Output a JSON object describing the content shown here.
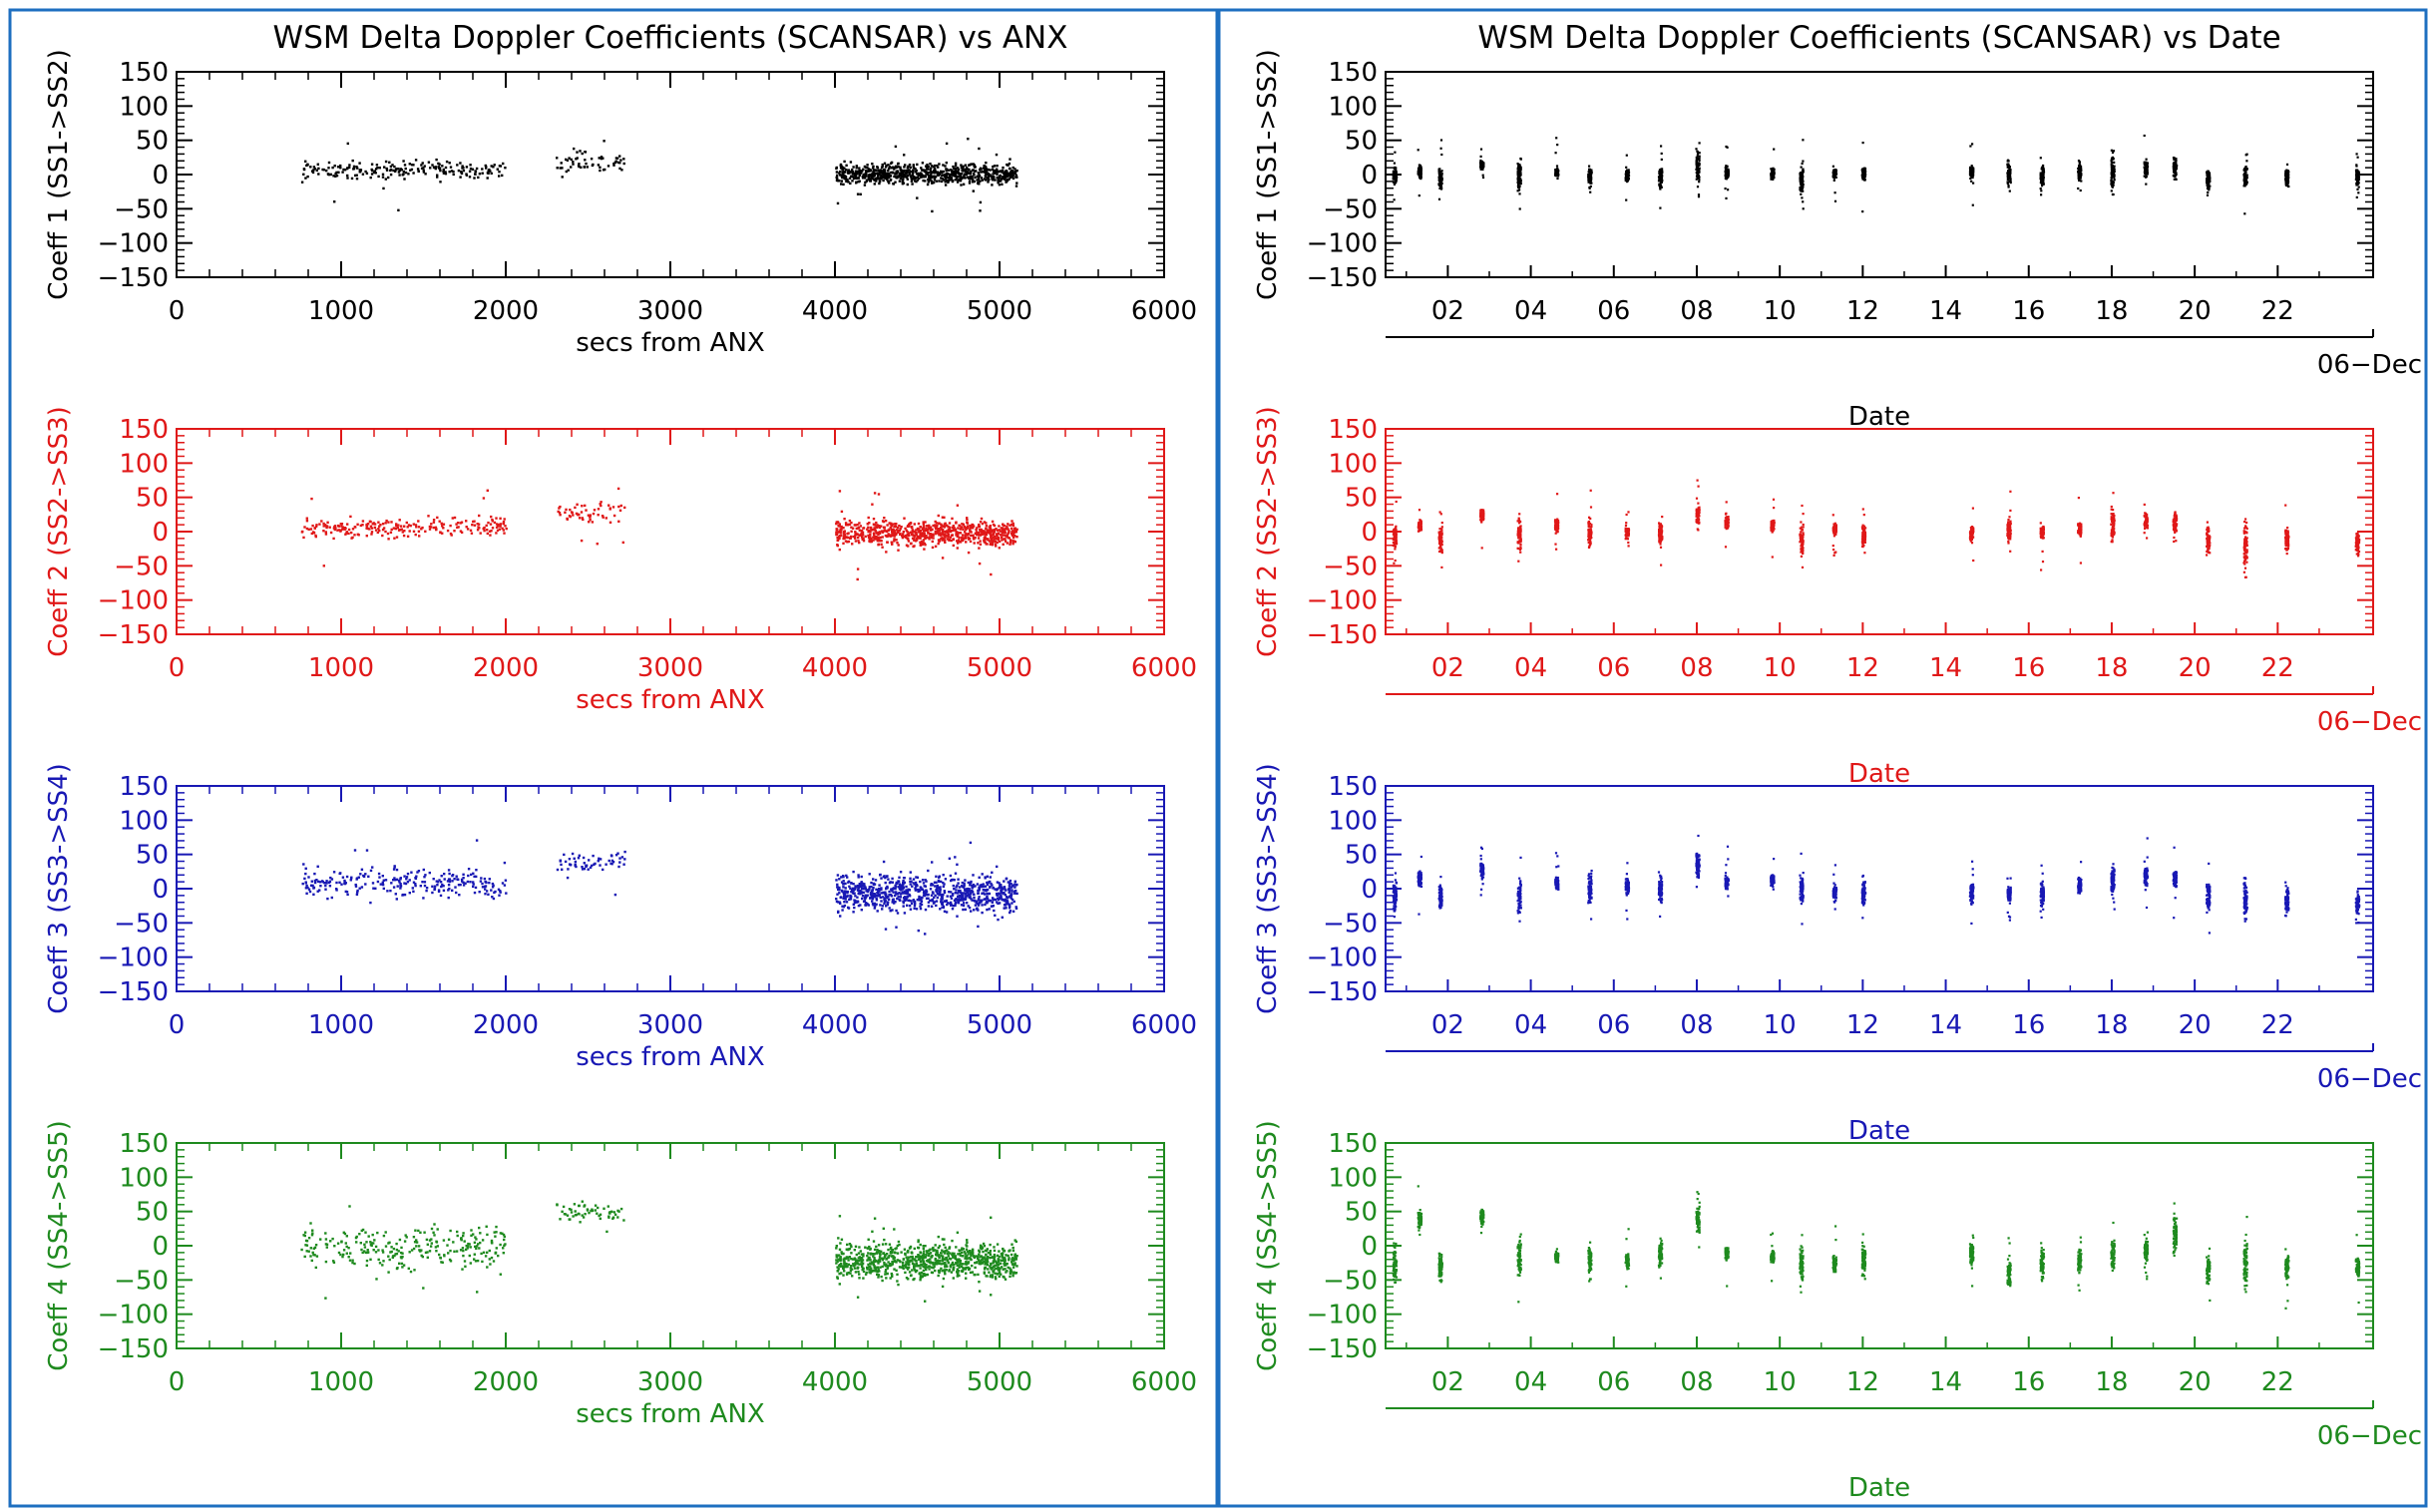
{
  "colors": {
    "frame": "#1e6fc0",
    "series": [
      "#000000",
      "#e01818",
      "#1818b4",
      "#1e8a1e"
    ]
  },
  "left_title": "WSM Delta Doppler Coefficients (SCANSAR) vs ANX",
  "right_title": "WSM Delta Doppler Coefficients (SCANSAR) vs Date",
  "chart_data": [
    {
      "type": "scatter",
      "panel": "left",
      "row": 0,
      "color": "#000000",
      "ylabel": "Coeff 1 (SS1->SS2)",
      "xlabel": "secs from ANX",
      "xlim": [
        0,
        6000
      ],
      "ylim": [
        -150,
        150
      ],
      "xticks": [
        "0",
        "1000",
        "2000",
        "3000",
        "4000",
        "5000",
        "6000"
      ],
      "yticks": [
        "150",
        "100",
        "50",
        "0",
        "−50",
        "−100",
        "−150"
      ],
      "clusters": [
        {
          "x": [
            750,
            2000
          ],
          "y": 8,
          "spread": 8,
          "n": 220
        },
        {
          "x": [
            2300,
            2720
          ],
          "y": 20,
          "spread": 12,
          "n": 60
        },
        {
          "x": [
            4000,
            5100
          ],
          "y": 2,
          "spread": 10,
          "n": 800
        }
      ]
    },
    {
      "type": "scatter",
      "panel": "left",
      "row": 1,
      "color": "#e01818",
      "ylabel": "Coeff 2 (SS2->SS3)",
      "xlabel": "secs from ANX",
      "xlim": [
        0,
        6000
      ],
      "ylim": [
        -150,
        150
      ],
      "xticks": [
        "0",
        "1000",
        "2000",
        "3000",
        "4000",
        "5000",
        "6000"
      ],
      "yticks": [
        "150",
        "100",
        "50",
        "0",
        "−50",
        "−100",
        "−150"
      ],
      "clusters": [
        {
          "x": [
            750,
            2000
          ],
          "y": 8,
          "spread": 10,
          "n": 240
        },
        {
          "x": [
            2300,
            2720
          ],
          "y": 30,
          "spread": 10,
          "n": 60
        },
        {
          "x": [
            4000,
            5100
          ],
          "y": 0,
          "spread": 13,
          "n": 800
        }
      ]
    },
    {
      "type": "scatter",
      "panel": "left",
      "row": 2,
      "color": "#1818b4",
      "ylabel": "Coeff 3 (SS3->SS4)",
      "xlabel": "secs from ANX",
      "xlim": [
        0,
        6000
      ],
      "ylim": [
        -150,
        150
      ],
      "xticks": [
        "0",
        "1000",
        "2000",
        "3000",
        "4000",
        "5000",
        "6000"
      ],
      "yticks": [
        "150",
        "100",
        "50",
        "0",
        "−50",
        "−100",
        "−150"
      ],
      "clusters": [
        {
          "x": [
            750,
            2000
          ],
          "y": 10,
          "spread": 15,
          "n": 260
        },
        {
          "x": [
            2300,
            2720
          ],
          "y": 40,
          "spread": 10,
          "n": 60
        },
        {
          "x": [
            4000,
            5100
          ],
          "y": -5,
          "spread": 18,
          "n": 850
        }
      ]
    },
    {
      "type": "scatter",
      "panel": "left",
      "row": 3,
      "color": "#1e8a1e",
      "ylabel": "Coeff 4 (SS4->SS5)",
      "xlabel": "secs from ANX",
      "xlim": [
        0,
        6000
      ],
      "ylim": [
        -150,
        150
      ],
      "xticks": [
        "0",
        "1000",
        "2000",
        "3000",
        "4000",
        "5000",
        "6000"
      ],
      "yticks": [
        "150",
        "100",
        "50",
        "0",
        "−50",
        "−100",
        "−150"
      ],
      "clusters": [
        {
          "x": [
            750,
            2000
          ],
          "y": 0,
          "spread": 22,
          "n": 280
        },
        {
          "x": [
            2300,
            2720
          ],
          "y": 50,
          "spread": 10,
          "n": 60
        },
        {
          "x": [
            4000,
            5100
          ],
          "y": -20,
          "spread": 18,
          "n": 900
        }
      ]
    },
    {
      "type": "scatter",
      "panel": "right",
      "row": 0,
      "color": "#000000",
      "ylabel": "Coeff 1 (SS1->SS2)",
      "xlabel": "Date",
      "date_label": "06−Dec",
      "xlim": [
        0.5,
        24.3
      ],
      "ylim": [
        -150,
        150
      ],
      "xtick_values": [
        2,
        4,
        6,
        8,
        10,
        12,
        14,
        16,
        18,
        20,
        22
      ],
      "xticks": [
        "02",
        "04",
        "06",
        "08",
        "10",
        "12",
        "14",
        "16",
        "18",
        "20",
        "22"
      ],
      "yticks": [
        "150",
        "100",
        "50",
        "0",
        "−50",
        "−100",
        "−150"
      ],
      "passes": [
        {
          "x": 0.7,
          "y": 0,
          "s": 8
        },
        {
          "x": 1.3,
          "y": 5,
          "s": 6
        },
        {
          "x": 1.8,
          "y": -5,
          "s": 10
        },
        {
          "x": 2.8,
          "y": 15,
          "s": 4
        },
        {
          "x": 3.7,
          "y": 0,
          "s": 15
        },
        {
          "x": 4.6,
          "y": 5,
          "s": 6
        },
        {
          "x": 5.4,
          "y": -2,
          "s": 10
        },
        {
          "x": 6.3,
          "y": 0,
          "s": 6
        },
        {
          "x": 7.1,
          "y": -3,
          "s": 10
        },
        {
          "x": 8.0,
          "y": 15,
          "s": 18
        },
        {
          "x": 8.7,
          "y": 5,
          "s": 6
        },
        {
          "x": 9.8,
          "y": 2,
          "s": 6
        },
        {
          "x": 10.5,
          "y": -5,
          "s": 15
        },
        {
          "x": 11.3,
          "y": 3,
          "s": 6
        },
        {
          "x": 12.0,
          "y": 2,
          "s": 8
        },
        {
          "x": 14.6,
          "y": 5,
          "s": 6
        },
        {
          "x": 15.5,
          "y": 2,
          "s": 12
        },
        {
          "x": 16.3,
          "y": 0,
          "s": 10
        },
        {
          "x": 17.2,
          "y": 5,
          "s": 10
        },
        {
          "x": 18.0,
          "y": 5,
          "s": 18
        },
        {
          "x": 18.8,
          "y": 10,
          "s": 8
        },
        {
          "x": 19.5,
          "y": 10,
          "s": 12
        },
        {
          "x": 20.3,
          "y": -5,
          "s": 10
        },
        {
          "x": 21.2,
          "y": -3,
          "s": 10
        },
        {
          "x": 22.2,
          "y": -3,
          "s": 10
        },
        {
          "x": 23.9,
          "y": -2,
          "s": 10
        }
      ]
    },
    {
      "type": "scatter",
      "panel": "right",
      "row": 1,
      "color": "#e01818",
      "ylabel": "Coeff 2 (SS2->SS3)",
      "xlabel": "Date",
      "date_label": "06−Dec",
      "xlim": [
        0.5,
        24.3
      ],
      "ylim": [
        -150,
        150
      ],
      "xtick_values": [
        2,
        4,
        6,
        8,
        10,
        12,
        14,
        16,
        18,
        20,
        22
      ],
      "xticks": [
        "02",
        "04",
        "06",
        "08",
        "10",
        "12",
        "14",
        "16",
        "18",
        "20",
        "22"
      ],
      "yticks": [
        "150",
        "100",
        "50",
        "0",
        "−50",
        "−100",
        "−150"
      ],
      "passes": [
        {
          "x": 0.7,
          "y": -5,
          "s": 12
        },
        {
          "x": 1.3,
          "y": 10,
          "s": 6
        },
        {
          "x": 1.8,
          "y": -10,
          "s": 12
        },
        {
          "x": 2.8,
          "y": 25,
          "s": 6
        },
        {
          "x": 3.7,
          "y": -5,
          "s": 15
        },
        {
          "x": 4.6,
          "y": 10,
          "s": 6
        },
        {
          "x": 5.4,
          "y": 0,
          "s": 15
        },
        {
          "x": 6.3,
          "y": 0,
          "s": 6
        },
        {
          "x": 7.1,
          "y": 0,
          "s": 12
        },
        {
          "x": 8.0,
          "y": 25,
          "s": 12
        },
        {
          "x": 8.7,
          "y": 15,
          "s": 6
        },
        {
          "x": 9.8,
          "y": 10,
          "s": 6
        },
        {
          "x": 10.5,
          "y": -5,
          "s": 18
        },
        {
          "x": 11.3,
          "y": 5,
          "s": 6
        },
        {
          "x": 12.0,
          "y": -5,
          "s": 10
        },
        {
          "x": 14.6,
          "y": 0,
          "s": 8
        },
        {
          "x": 15.5,
          "y": 5,
          "s": 12
        },
        {
          "x": 16.3,
          "y": 0,
          "s": 8
        },
        {
          "x": 17.2,
          "y": 5,
          "s": 8
        },
        {
          "x": 18.0,
          "y": 10,
          "s": 15
        },
        {
          "x": 18.8,
          "y": 15,
          "s": 8
        },
        {
          "x": 19.5,
          "y": 15,
          "s": 10
        },
        {
          "x": 20.3,
          "y": -10,
          "s": 15
        },
        {
          "x": 21.2,
          "y": -20,
          "s": 25
        },
        {
          "x": 22.2,
          "y": -10,
          "s": 10
        },
        {
          "x": 23.9,
          "y": -15,
          "s": 12
        }
      ]
    },
    {
      "type": "scatter",
      "panel": "right",
      "row": 2,
      "color": "#1818b4",
      "ylabel": "Coeff 3 (SS3->SS4)",
      "xlabel": "Date",
      "date_label": "06−Dec",
      "xlim": [
        0.5,
        24.3
      ],
      "ylim": [
        -150,
        150
      ],
      "xtick_values": [
        2,
        4,
        6,
        8,
        10,
        12,
        14,
        16,
        18,
        20,
        22
      ],
      "xticks": [
        "02",
        "04",
        "06",
        "08",
        "10",
        "12",
        "14",
        "16",
        "18",
        "20",
        "22"
      ],
      "yticks": [
        "150",
        "100",
        "50",
        "0",
        "−50",
        "−100",
        "−150"
      ],
      "passes": [
        {
          "x": 0.7,
          "y": -10,
          "s": 15
        },
        {
          "x": 1.3,
          "y": 15,
          "s": 8
        },
        {
          "x": 1.8,
          "y": -10,
          "s": 15
        },
        {
          "x": 2.8,
          "y": 30,
          "s": 8
        },
        {
          "x": 3.7,
          "y": -10,
          "s": 18
        },
        {
          "x": 4.6,
          "y": 10,
          "s": 6
        },
        {
          "x": 5.4,
          "y": 0,
          "s": 18
        },
        {
          "x": 6.3,
          "y": 5,
          "s": 8
        },
        {
          "x": 7.1,
          "y": 0,
          "s": 12
        },
        {
          "x": 8.0,
          "y": 35,
          "s": 12
        },
        {
          "x": 8.7,
          "y": 10,
          "s": 6
        },
        {
          "x": 9.8,
          "y": 15,
          "s": 6
        },
        {
          "x": 10.5,
          "y": 0,
          "s": 18
        },
        {
          "x": 11.3,
          "y": -5,
          "s": 8
        },
        {
          "x": 12.0,
          "y": -5,
          "s": 12
        },
        {
          "x": 14.6,
          "y": -5,
          "s": 10
        },
        {
          "x": 15.5,
          "y": -5,
          "s": 8
        },
        {
          "x": 16.3,
          "y": -5,
          "s": 12
        },
        {
          "x": 17.2,
          "y": 5,
          "s": 8
        },
        {
          "x": 18.0,
          "y": 15,
          "s": 15
        },
        {
          "x": 18.8,
          "y": 20,
          "s": 12
        },
        {
          "x": 19.5,
          "y": 15,
          "s": 10
        },
        {
          "x": 20.3,
          "y": -10,
          "s": 15
        },
        {
          "x": 21.2,
          "y": -15,
          "s": 20
        },
        {
          "x": 22.2,
          "y": -15,
          "s": 12
        },
        {
          "x": 23.9,
          "y": -20,
          "s": 12
        }
      ]
    },
    {
      "type": "scatter",
      "panel": "right",
      "row": 3,
      "color": "#1e8a1e",
      "ylabel": "Coeff 4 (SS4->SS5)",
      "xlabel": "Date",
      "date_label": "06−Dec",
      "xlim": [
        0.5,
        24.3
      ],
      "ylim": [
        -150,
        150
      ],
      "xtick_values": [
        2,
        4,
        6,
        8,
        10,
        12,
        14,
        16,
        18,
        20,
        22
      ],
      "xticks": [
        "02",
        "04",
        "06",
        "08",
        "10",
        "12",
        "14",
        "16",
        "18",
        "20",
        "22"
      ],
      "yticks": [
        "150",
        "100",
        "50",
        "0",
        "−50",
        "−100",
        "−150"
      ],
      "passes": [
        {
          "x": 0.7,
          "y": -25,
          "s": 15
        },
        {
          "x": 1.3,
          "y": 40,
          "s": 8
        },
        {
          "x": 1.8,
          "y": -30,
          "s": 15
        },
        {
          "x": 2.8,
          "y": 45,
          "s": 8
        },
        {
          "x": 3.7,
          "y": -20,
          "s": 18
        },
        {
          "x": 4.6,
          "y": -15,
          "s": 6
        },
        {
          "x": 5.4,
          "y": -20,
          "s": 15
        },
        {
          "x": 6.3,
          "y": -20,
          "s": 8
        },
        {
          "x": 7.1,
          "y": -10,
          "s": 15
        },
        {
          "x": 8.0,
          "y": 40,
          "s": 12
        },
        {
          "x": 8.7,
          "y": -10,
          "s": 6
        },
        {
          "x": 9.8,
          "y": -15,
          "s": 6
        },
        {
          "x": 10.5,
          "y": -25,
          "s": 15
        },
        {
          "x": 11.3,
          "y": -25,
          "s": 8
        },
        {
          "x": 12.0,
          "y": -20,
          "s": 15
        },
        {
          "x": 14.6,
          "y": -10,
          "s": 12
        },
        {
          "x": 15.5,
          "y": -40,
          "s": 18
        },
        {
          "x": 16.3,
          "y": -25,
          "s": 15
        },
        {
          "x": 17.2,
          "y": -20,
          "s": 12
        },
        {
          "x": 18.0,
          "y": -10,
          "s": 15
        },
        {
          "x": 18.8,
          "y": -5,
          "s": 12
        },
        {
          "x": 19.5,
          "y": 20,
          "s": 18
        },
        {
          "x": 20.3,
          "y": -35,
          "s": 15
        },
        {
          "x": 21.2,
          "y": -20,
          "s": 25
        },
        {
          "x": 22.2,
          "y": -30,
          "s": 15
        },
        {
          "x": 23.9,
          "y": -30,
          "s": 12
        }
      ]
    }
  ]
}
